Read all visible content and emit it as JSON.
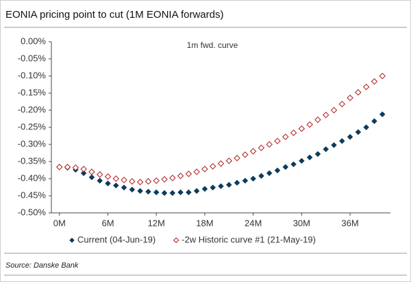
{
  "chart_data": {
    "type": "scatter",
    "title": "EONIA pricing point to cut (1M EONIA forwards)",
    "annotation": "1m fwd. curve",
    "source": "Source: Danske Bank",
    "x": [
      0,
      1,
      2,
      3,
      4,
      5,
      6,
      7,
      8,
      9,
      10,
      11,
      12,
      13,
      14,
      15,
      16,
      17,
      18,
      19,
      20,
      21,
      22,
      23,
      24,
      25,
      26,
      27,
      28,
      29,
      30,
      31,
      32,
      33,
      34,
      35,
      36,
      37,
      38,
      39,
      40
    ],
    "series": [
      {
        "name": "Current (04-Jun-19)",
        "color": "#0d3b5c",
        "marker": "filled",
        "values": [
          -0.366,
          -0.368,
          -0.374,
          -0.384,
          -0.396,
          -0.406,
          -0.414,
          -0.42,
          -0.426,
          -0.432,
          -0.436,
          -0.438,
          -0.44,
          -0.442,
          -0.442,
          -0.44,
          -0.44,
          -0.436,
          -0.43,
          -0.426,
          -0.422,
          -0.418,
          -0.412,
          -0.406,
          -0.4,
          -0.392,
          -0.384,
          -0.376,
          -0.366,
          -0.358,
          -0.348,
          -0.338,
          -0.328,
          -0.314,
          -0.302,
          -0.29,
          -0.278,
          -0.264,
          -0.25,
          -0.232,
          -0.212
        ]
      },
      {
        "name": "-2w Historic curve #1 (21-May-19)",
        "color": "#b22a2a",
        "marker": "hollow",
        "values": [
          -0.366,
          -0.366,
          -0.368,
          -0.372,
          -0.38,
          -0.388,
          -0.394,
          -0.4,
          -0.404,
          -0.408,
          -0.41,
          -0.408,
          -0.406,
          -0.402,
          -0.398,
          -0.392,
          -0.386,
          -0.38,
          -0.372,
          -0.364,
          -0.356,
          -0.348,
          -0.34,
          -0.33,
          -0.32,
          -0.31,
          -0.3,
          -0.29,
          -0.278,
          -0.266,
          -0.254,
          -0.242,
          -0.228,
          -0.214,
          -0.2,
          -0.182,
          -0.164,
          -0.148,
          -0.132,
          -0.116,
          -0.1
        ]
      }
    ],
    "xlim": [
      -1,
      41
    ],
    "xticks": [
      {
        "value": 0,
        "label": "0M"
      },
      {
        "value": 6,
        "label": "6M"
      },
      {
        "value": 12,
        "label": "12M"
      },
      {
        "value": 18,
        "label": "18M"
      },
      {
        "value": 24,
        "label": "24M"
      },
      {
        "value": 30,
        "label": "30M"
      },
      {
        "value": 36,
        "label": "36M"
      }
    ],
    "ylim": [
      -0.5,
      0
    ],
    "yticks": [
      {
        "value": 0,
        "label": "0.00%"
      },
      {
        "value": -0.05,
        "label": "-0.05%"
      },
      {
        "value": -0.1,
        "label": "-0.10%"
      },
      {
        "value": -0.15,
        "label": "-0.15%"
      },
      {
        "value": -0.2,
        "label": "-0.20%"
      },
      {
        "value": -0.25,
        "label": "-0.25%"
      },
      {
        "value": -0.3,
        "label": "-0.30%"
      },
      {
        "value": -0.35,
        "label": "-0.35%"
      },
      {
        "value": -0.4,
        "label": "-0.40%"
      },
      {
        "value": -0.45,
        "label": "-0.45%"
      },
      {
        "value": -0.5,
        "label": "-0.50%"
      }
    ]
  }
}
